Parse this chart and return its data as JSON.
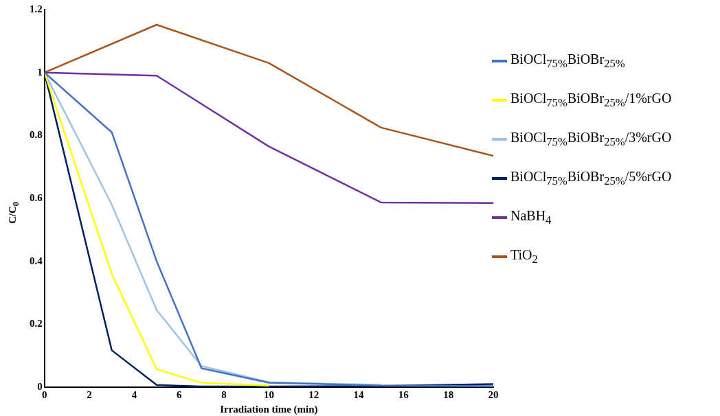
{
  "chart_data": {
    "type": "line",
    "xlabel": "Irradiation time (min)",
    "ylabel": "C/C$_{0}$",
    "xlim": [
      0,
      20
    ],
    "xticks": [
      0,
      2,
      4,
      6,
      8,
      10,
      12,
      14,
      16,
      18,
      20
    ],
    "ylim": [
      0,
      1.2
    ],
    "yticks": [
      0,
      0.2,
      0.4,
      0.6,
      0.8,
      1,
      1.2
    ],
    "grid": false,
    "legend": "right",
    "marker": "none",
    "line_style": "solid",
    "series": [
      {
        "name": "BiOCl$_{75%}$BiOBr$_{25%}$",
        "color": "#4472c4",
        "x": [
          0,
          3,
          5,
          7,
          10,
          15,
          20
        ],
        "values": [
          1,
          0.81,
          0.4,
          0.06,
          0.014,
          0.005,
          0.003
        ]
      },
      {
        "name": "BiOCl$_{75%}$BiOBr$_{25%}$/1%rGO",
        "color": "#ffff00",
        "x": [
          0,
          3,
          5,
          7,
          10
        ],
        "values": [
          1,
          0.36,
          0.057,
          0.014,
          0.005
        ]
      },
      {
        "name": "BiOCl$_{75%}$BiOBr$_{25%}$/3%rGO",
        "color": "#9dc3e6",
        "x": [
          0,
          3,
          5,
          7,
          10,
          15
        ],
        "values": [
          1,
          0.58,
          0.245,
          0.067,
          0.016,
          0.007
        ]
      },
      {
        "name": "BiOCl$_{75%}$BiOBr$_{25%}$/5%rGO",
        "color": "#002060",
        "x": [
          0,
          3,
          5,
          7,
          10,
          15,
          20
        ],
        "values": [
          1,
          0.117,
          0.007,
          0.002,
          0.002,
          0.004,
          0.01
        ]
      },
      {
        "name": "NaBH$_{4}$",
        "color": "#7030a0",
        "x": [
          0,
          5,
          10,
          15,
          20
        ],
        "values": [
          1,
          0.99,
          0.765,
          0.587,
          0.585
        ]
      },
      {
        "name": "TiO$_{2}$",
        "color": "#a9541b",
        "x": [
          0,
          5,
          10,
          15,
          20
        ],
        "values": [
          1,
          1.152,
          1.03,
          0.825,
          0.735
        ]
      }
    ]
  }
}
